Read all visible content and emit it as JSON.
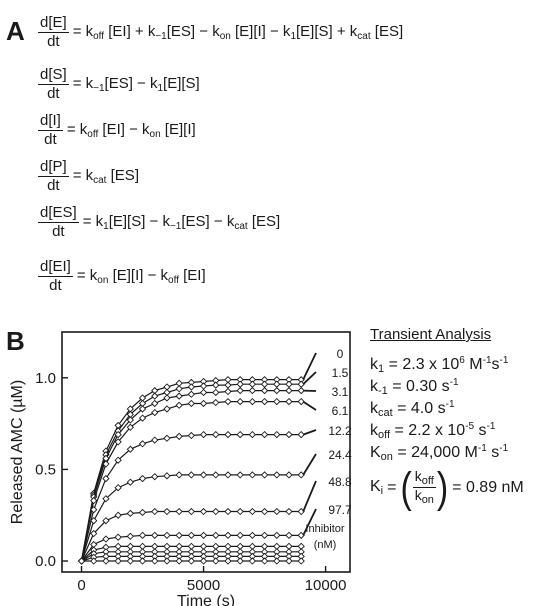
{
  "panel_a": {
    "label": "A",
    "equations": [
      {
        "num": "d[E]",
        "den": "dt",
        "rhs_html": "= k<sub>off</sub> [EI] + k<sub>−1</sub>[ES] − k<sub>on</sub> [E][I] − k<sub>1</sub>[E][S] + k<sub>cat</sub> [ES]"
      },
      {
        "num": "d[S]",
        "den": "dt",
        "rhs_html": "= k<sub>−1</sub>[ES] − k<sub>1</sub>[E][S]"
      },
      {
        "num": "d[I]",
        "den": "dt",
        "rhs_html": "= k<sub>off</sub> [EI] − k<sub>on</sub> [E][I]"
      },
      {
        "num": "d[P]",
        "den": "dt",
        "rhs_html": "= k<sub>cat</sub> [ES]"
      },
      {
        "num": "d[ES]",
        "den": "dt",
        "rhs_html": "= k<sub>1</sub>[E][S] − k<sub>−1</sub>[ES] − k<sub>cat</sub> [ES]"
      },
      {
        "num": "d[EI]",
        "den": "dt",
        "rhs_html": "= k<sub>on</sub> [E][I] − k<sub>off</sub> [EI]"
      }
    ]
  },
  "panel_b": {
    "label": "B",
    "inhibitor_label_line1": "Inhibitor",
    "inhibitor_label_line2": "(nM)"
  },
  "analysis": {
    "title": "Transient Analysis",
    "lines_html": [
      "k<sub>1</sub> = 2.3 x 10<sup>6</sup> M<sup>-1</sup>s<sup>-1</sup>",
      "k<sub>-1</sub> = 0.30 s<sup>-1</sup>",
      "k<sub>cat</sub> = 4.0 s<sup>-1</sup>",
      "k<sub>off</sub> = 2.2 x 10<sup>-5</sup> s<sup>-1</sup>",
      "K<sub>on</sub> = 24,000 M<sup>-1</sup> s<sup>-1</sup>"
    ],
    "ki_lhs": "K",
    "ki_sub": "i",
    "ki_num": "off",
    "ki_den": "on",
    "ki_value": "= 0.89 nM"
  },
  "chart_data": {
    "type": "scatter",
    "xlabel": "Time (s)",
    "ylabel": "Released AMC (µM)",
    "xlim": [
      -800,
      11000
    ],
    "ylim": [
      -0.06,
      1.25
    ],
    "xticks": [
      0,
      5000,
      10000
    ],
    "yticks": [
      0.0,
      0.5,
      1.0
    ],
    "tick_labels_x": [
      "0",
      "5000",
      "10000"
    ],
    "tick_labels_y": [
      "0.0",
      "0.5",
      "1.0"
    ],
    "marker": "open-diamond",
    "fit_line": "solid",
    "series": [
      {
        "name": "0",
        "plateau": 0.99,
        "x": [
          0,
          500,
          1000,
          1500,
          2000,
          2500,
          3000,
          3500,
          4000,
          4500,
          5000,
          5500,
          6000,
          6500,
          7000,
          7500,
          8000,
          8500,
          9000
        ],
        "y": [
          0.0,
          0.37,
          0.6,
          0.74,
          0.83,
          0.89,
          0.93,
          0.95,
          0.97,
          0.975,
          0.98,
          0.985,
          0.99,
          0.99,
          0.99,
          0.99,
          0.99,
          0.99,
          0.99
        ]
      },
      {
        "name": "1.5",
        "plateau": 0.965,
        "x": [
          0,
          500,
          1000,
          1500,
          2000,
          2500,
          3000,
          3500,
          4000,
          4500,
          5000,
          5500,
          6000,
          6500,
          7000,
          7500,
          8000,
          8500,
          9000
        ],
        "y": [
          0.0,
          0.36,
          0.58,
          0.71,
          0.8,
          0.86,
          0.9,
          0.92,
          0.94,
          0.95,
          0.955,
          0.96,
          0.96,
          0.965,
          0.965,
          0.965,
          0.965,
          0.965,
          0.965
        ]
      },
      {
        "name": "3.1",
        "plateau": 0.93,
        "x": [
          0,
          500,
          1000,
          1500,
          2000,
          2500,
          3000,
          3500,
          4000,
          4500,
          5000,
          5500,
          6000,
          6500,
          7000,
          7500,
          8000,
          8500,
          9000
        ],
        "y": [
          0.0,
          0.35,
          0.56,
          0.69,
          0.77,
          0.83,
          0.86,
          0.89,
          0.9,
          0.91,
          0.92,
          0.92,
          0.925,
          0.93,
          0.93,
          0.93,
          0.93,
          0.93,
          0.93
        ]
      },
      {
        "name": "6.1",
        "plateau": 0.87,
        "x": [
          0,
          500,
          1000,
          1500,
          2000,
          2500,
          3000,
          3500,
          4000,
          4500,
          5000,
          5500,
          6000,
          6500,
          7000,
          7500,
          8000,
          8500,
          9000
        ],
        "y": [
          0.0,
          0.33,
          0.53,
          0.65,
          0.73,
          0.78,
          0.81,
          0.83,
          0.85,
          0.86,
          0.86,
          0.865,
          0.87,
          0.87,
          0.87,
          0.87,
          0.87,
          0.87,
          0.87
        ]
      },
      {
        "name": "12.2",
        "plateau": 0.69,
        "x": [
          0,
          500,
          1000,
          1500,
          2000,
          2500,
          3000,
          3500,
          4000,
          4500,
          5000,
          5500,
          6000,
          6500,
          7000,
          7500,
          8000,
          8500,
          9000
        ],
        "y": [
          0.0,
          0.28,
          0.45,
          0.55,
          0.61,
          0.64,
          0.66,
          0.67,
          0.68,
          0.685,
          0.69,
          0.69,
          0.69,
          0.69,
          0.69,
          0.69,
          0.69,
          0.69,
          0.69
        ]
      },
      {
        "name": "24.4",
        "plateau": 0.47,
        "x": [
          0,
          500,
          1000,
          1500,
          2000,
          2500,
          3000,
          3500,
          4000,
          4500,
          5000,
          5500,
          6000,
          6500,
          7000,
          7500,
          8000,
          8500,
          9000
        ],
        "y": [
          0.0,
          0.22,
          0.34,
          0.4,
          0.43,
          0.45,
          0.46,
          0.465,
          0.47,
          0.47,
          0.47,
          0.47,
          0.47,
          0.47,
          0.47,
          0.47,
          0.47,
          0.47,
          0.47
        ]
      },
      {
        "name": "48.8",
        "plateau": 0.27,
        "x": [
          0,
          500,
          1000,
          1500,
          2000,
          2500,
          3000,
          3500,
          4000,
          4500,
          5000,
          5500,
          6000,
          6500,
          7000,
          7500,
          8000,
          8500,
          9000
        ],
        "y": [
          0.0,
          0.15,
          0.22,
          0.25,
          0.26,
          0.265,
          0.27,
          0.27,
          0.27,
          0.27,
          0.27,
          0.27,
          0.27,
          0.27,
          0.27,
          0.27,
          0.27,
          0.27,
          0.27
        ]
      },
      {
        "name": "97.7",
        "plateau": 0.14,
        "x": [
          0,
          500,
          1000,
          1500,
          2000,
          2500,
          3000,
          3500,
          4000,
          4500,
          5000,
          5500,
          6000,
          6500,
          7000,
          7500,
          8000,
          8500,
          9000
        ],
        "y": [
          0.0,
          0.09,
          0.12,
          0.13,
          0.135,
          0.14,
          0.14,
          0.14,
          0.14,
          0.14,
          0.14,
          0.14,
          0.14,
          0.14,
          0.14,
          0.14,
          0.14,
          0.14,
          0.14
        ]
      },
      {
        "name": "",
        "plateau": 0.08,
        "x": [
          0,
          500,
          1000,
          1500,
          2000,
          2500,
          3000,
          3500,
          4000,
          4500,
          5000,
          5500,
          6000,
          6500,
          7000,
          7500,
          8000,
          8500,
          9000
        ],
        "y": [
          0.0,
          0.06,
          0.075,
          0.08,
          0.08,
          0.08,
          0.08,
          0.08,
          0.08,
          0.08,
          0.08,
          0.08,
          0.08,
          0.08,
          0.08,
          0.08,
          0.08,
          0.08,
          0.08
        ]
      },
      {
        "name": "",
        "plateau": 0.05,
        "x": [
          0,
          500,
          1000,
          1500,
          2000,
          2500,
          3000,
          3500,
          4000,
          4500,
          5000,
          5500,
          6000,
          6500,
          7000,
          7500,
          8000,
          8500,
          9000
        ],
        "y": [
          0.0,
          0.04,
          0.05,
          0.05,
          0.05,
          0.05,
          0.05,
          0.05,
          0.05,
          0.05,
          0.05,
          0.05,
          0.05,
          0.05,
          0.05,
          0.05,
          0.05,
          0.05,
          0.05
        ]
      },
      {
        "name": "",
        "plateau": 0.025,
        "x": [
          0,
          500,
          1000,
          1500,
          2000,
          2500,
          3000,
          3500,
          4000,
          4500,
          5000,
          5500,
          6000,
          6500,
          7000,
          7500,
          8000,
          8500,
          9000
        ],
        "y": [
          0.0,
          0.02,
          0.025,
          0.025,
          0.025,
          0.025,
          0.025,
          0.025,
          0.025,
          0.025,
          0.025,
          0.025,
          0.025,
          0.025,
          0.025,
          0.025,
          0.025,
          0.025,
          0.025
        ]
      },
      {
        "name": "",
        "plateau": 0.0,
        "x": [
          0,
          500,
          1000,
          1500,
          2000,
          2500,
          3000,
          3500,
          4000,
          4500,
          5000,
          5500,
          6000,
          6500,
          7000,
          7500,
          8000,
          8500,
          9000
        ],
        "y": [
          0.0,
          0.0,
          0.0,
          0.0,
          0.0,
          0.0,
          0.0,
          0.0,
          0.0,
          0.0,
          0.0,
          0.0,
          0.0,
          0.0,
          0.0,
          0.0,
          0.0,
          0.0,
          0.0
        ]
      }
    ]
  }
}
